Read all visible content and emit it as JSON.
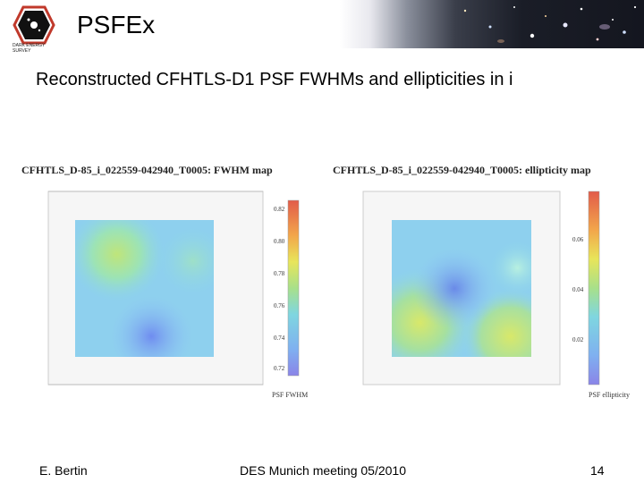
{
  "header": {
    "title": "PSFEx",
    "logo_text_line1": "DARK ENERGY",
    "logo_text_line2": "SURVEY"
  },
  "slide": {
    "subtitle": "Reconstructed CFHTLS-D1 PSF FWHMs and ellipticities in i"
  },
  "panels": {
    "fwhm": {
      "title": "CFHTLS_D-85_i_022559-042940_T0005: FWHM map",
      "colorbar_label": "PSF FWHM",
      "colorbar_ticks": [
        "0.82",
        "0.80",
        "0.78",
        "0.76",
        "0.74",
        "0.72"
      ]
    },
    "ellipticity": {
      "title": "CFHTLS_D-85_i_022559-042940_T0005: ellipticity map",
      "colorbar_label": "PSF ellipticity",
      "colorbar_ticks": [
        "0.06",
        "0.04",
        "0.02"
      ]
    }
  },
  "footer": {
    "author": "E. Bertin",
    "event": "DES Munich meeting 05/2010",
    "page": "14"
  }
}
